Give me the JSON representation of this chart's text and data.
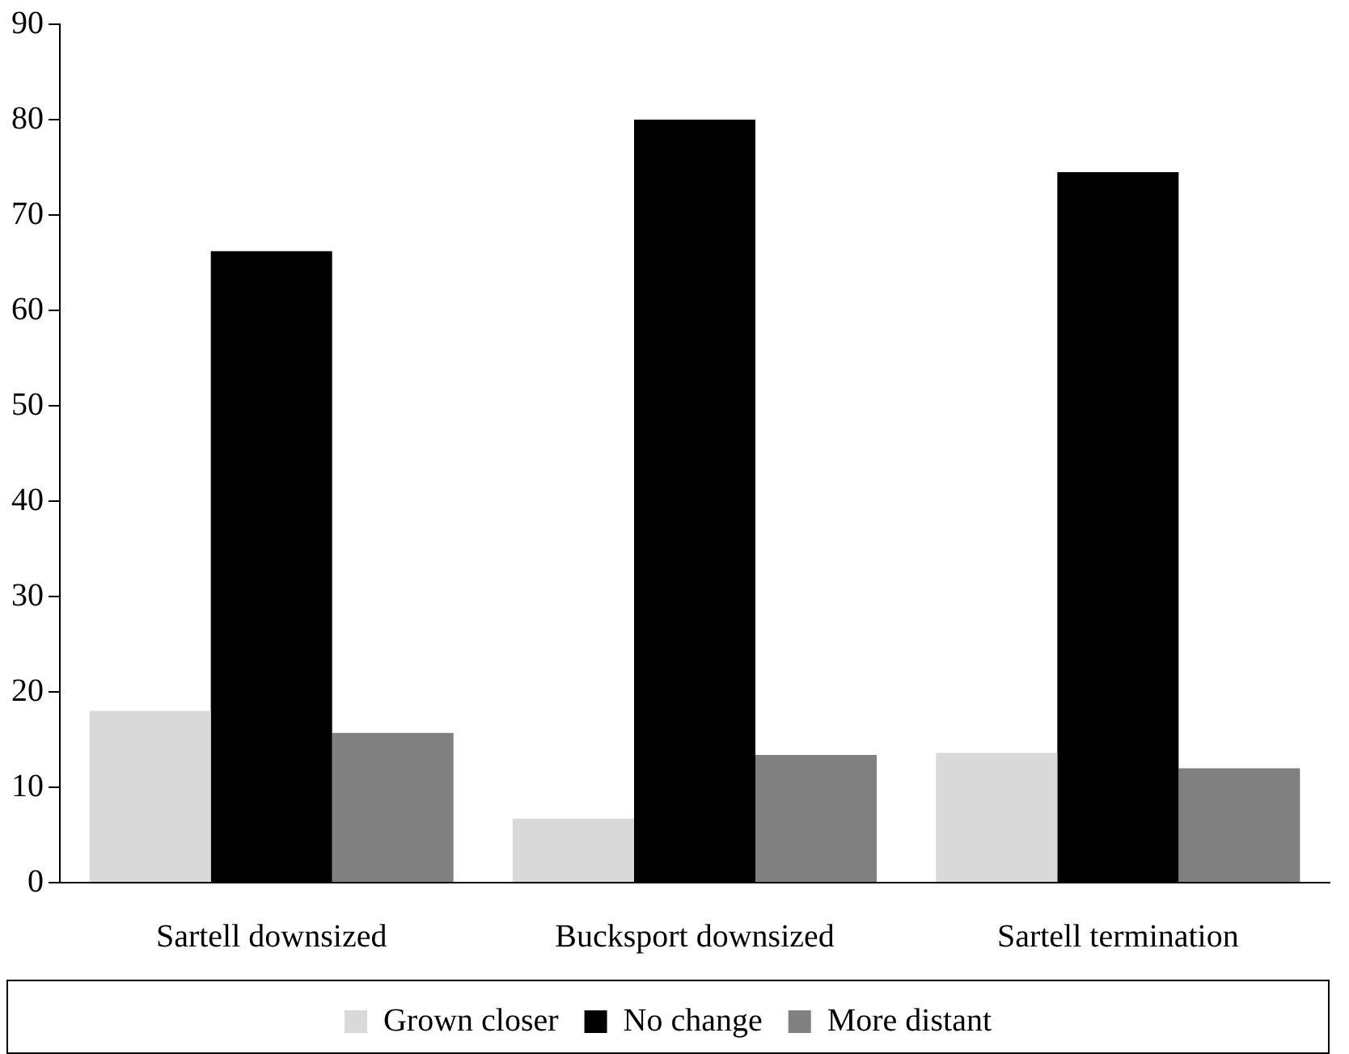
{
  "chart_data": {
    "type": "bar",
    "categories": [
      "Sartell downsized",
      "Bucksport downsized",
      "Sartell termination"
    ],
    "series": [
      {
        "name": "Grown closer",
        "color": "#d9d9d9",
        "values": [
          18,
          6.7,
          13.6
        ]
      },
      {
        "name": "No change",
        "color": "#000000",
        "values": [
          66.2,
          80,
          74.5
        ]
      },
      {
        "name": "More distant",
        "color": "#808080",
        "values": [
          15.7,
          13.4,
          12
        ]
      }
    ],
    "ylim": [
      0,
      90
    ],
    "yticks": [
      0,
      10,
      20,
      30,
      40,
      50,
      60,
      70,
      80,
      90
    ],
    "grid": false,
    "legend": "bottom"
  }
}
